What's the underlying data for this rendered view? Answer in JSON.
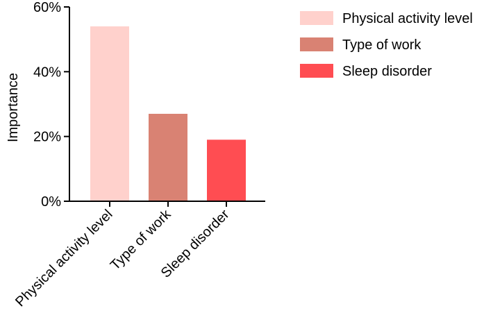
{
  "chart_data": {
    "type": "bar",
    "title": "",
    "xlabel": "",
    "ylabel": "Importance",
    "ylim": [
      0,
      60
    ],
    "y_ticks": [
      {
        "value": 0,
        "label": "0%"
      },
      {
        "value": 20,
        "label": "20%"
      },
      {
        "value": 40,
        "label": "40%"
      },
      {
        "value": 60,
        "label": "60%"
      }
    ],
    "categories": [
      "Physical activity level",
      "Type of work",
      "Sleep disorder"
    ],
    "values": [
      54,
      27,
      19
    ],
    "colors": [
      "#ffd1cc",
      "#d98273",
      "#ff4d52"
    ],
    "unit": "%",
    "grid": false,
    "legend": {
      "position": "top-right",
      "entries": [
        "Physical activity level",
        "Type of work",
        "Sleep disorder"
      ]
    }
  }
}
